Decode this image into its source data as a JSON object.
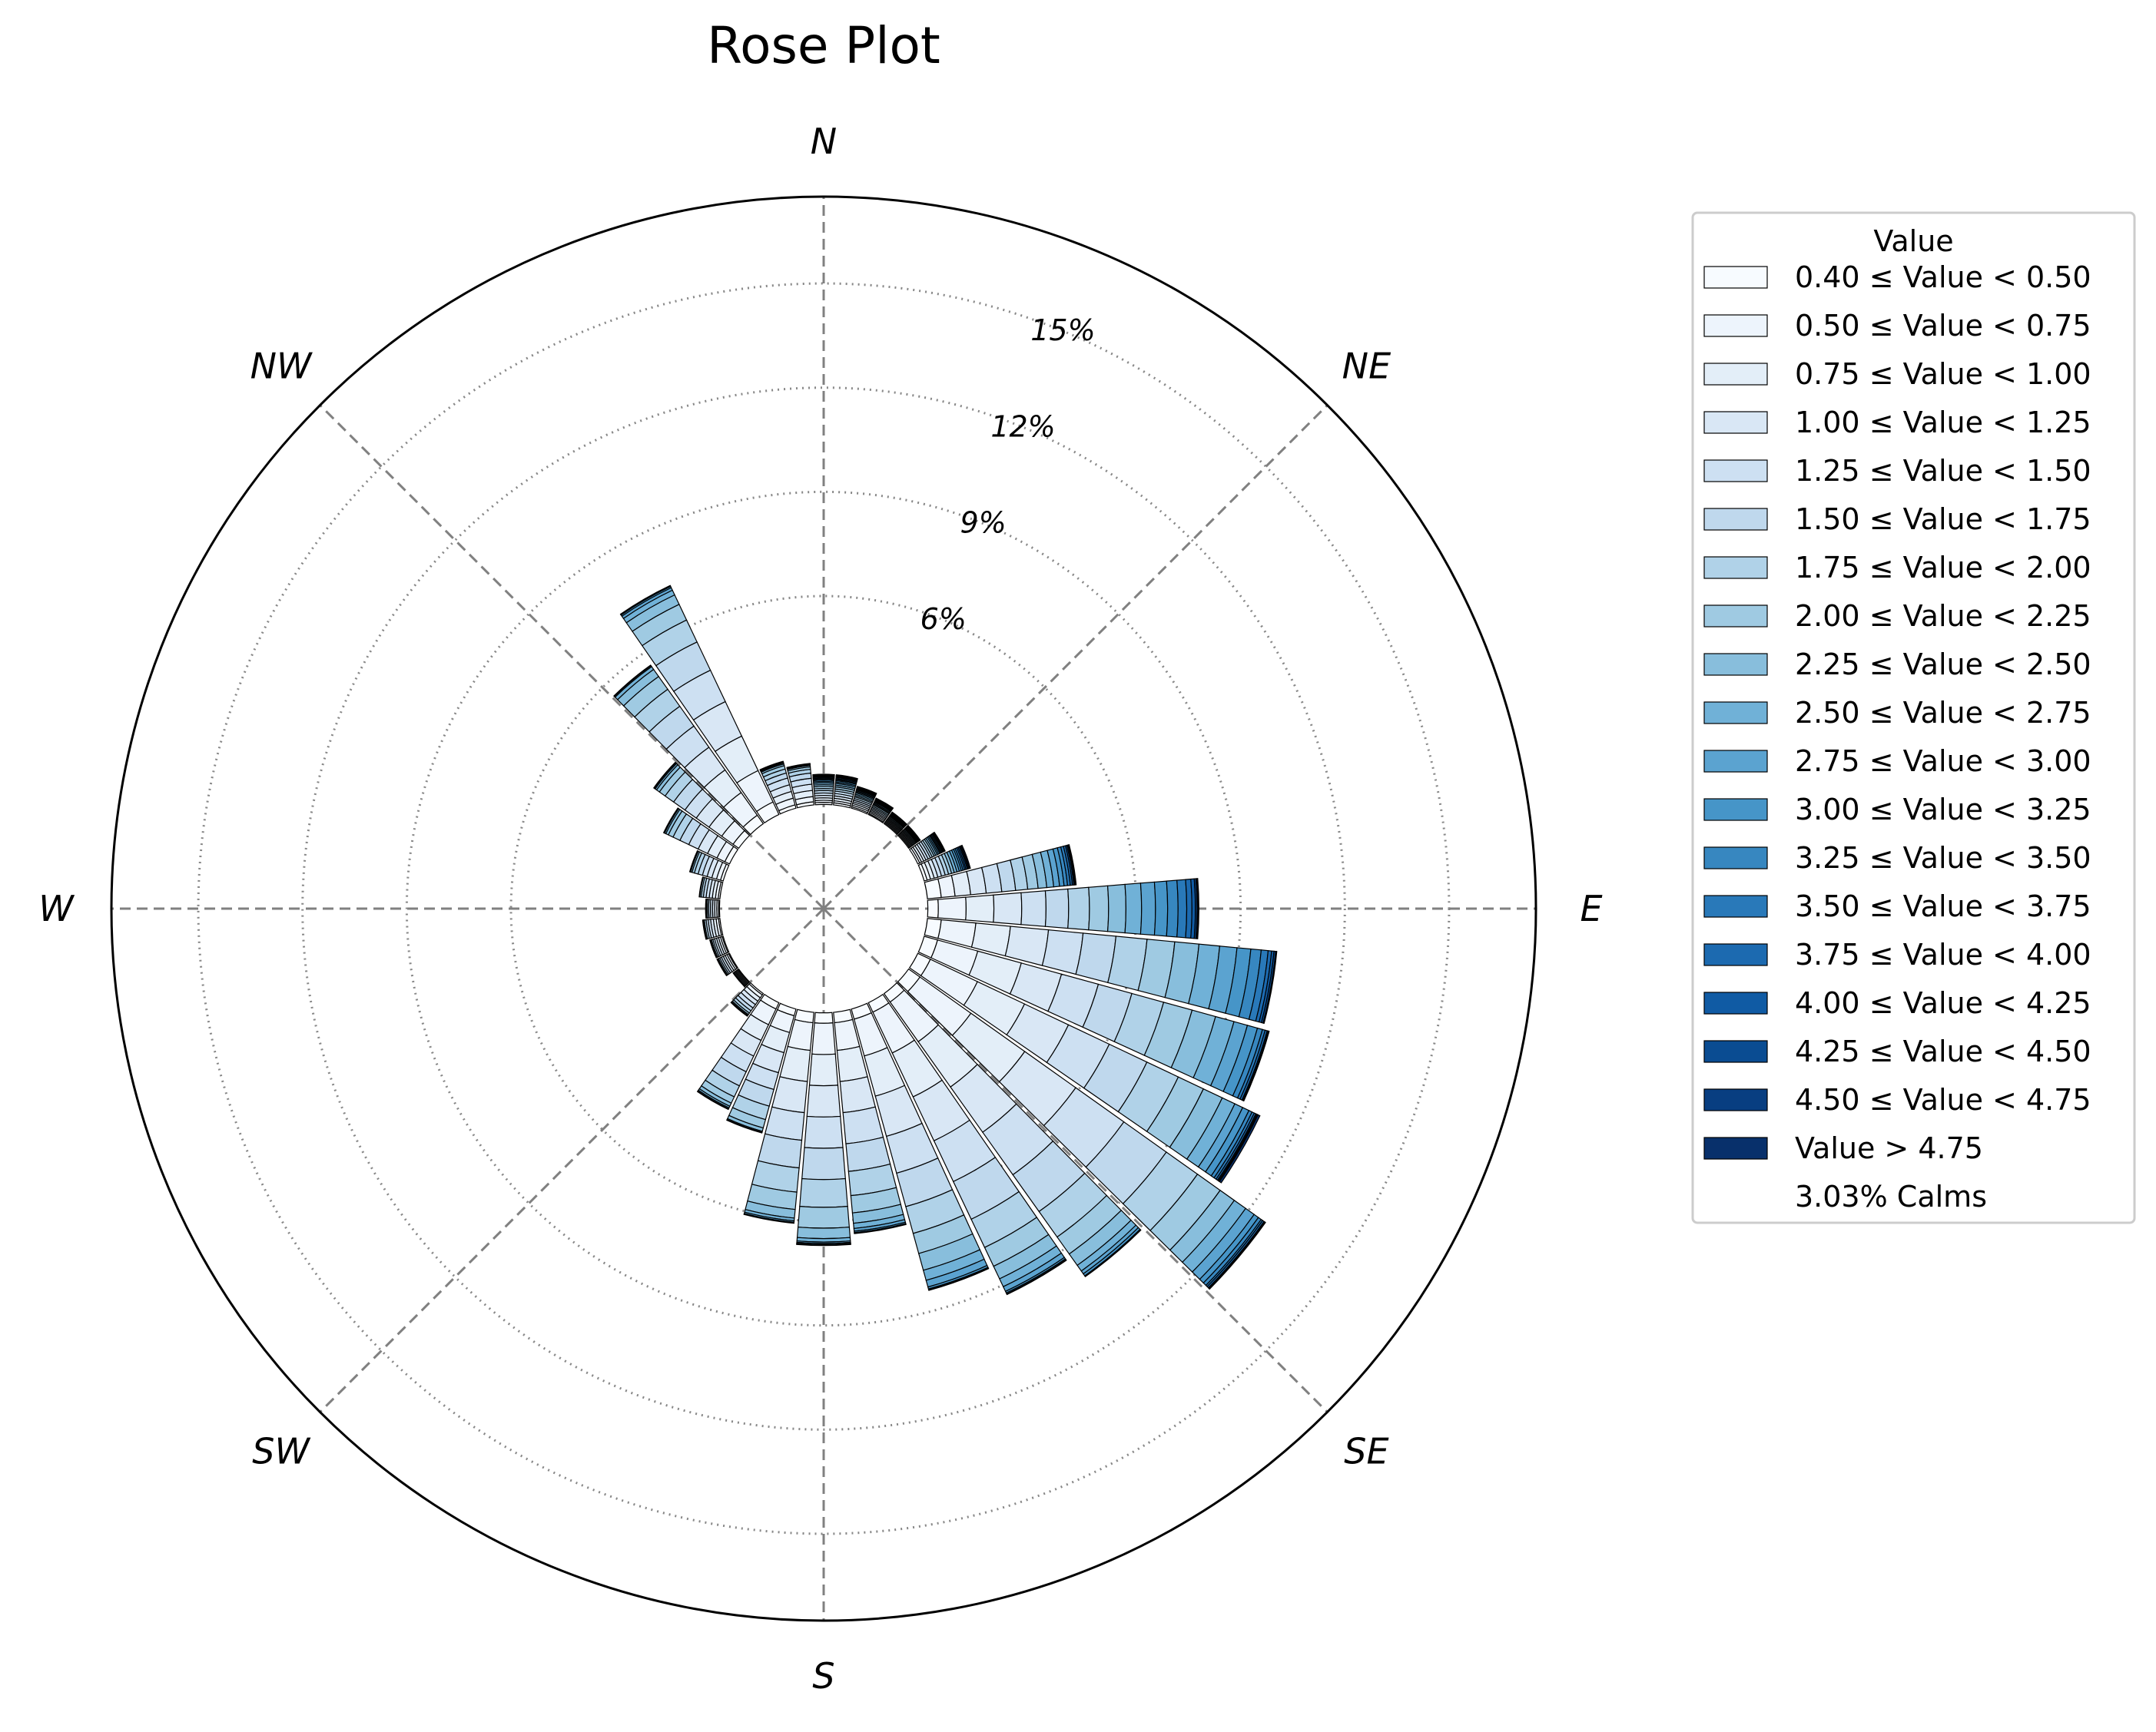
{
  "chart_data": {
    "type": "windrose",
    "title": "Rose Plot",
    "directions": [
      "N",
      "NE",
      "E",
      "SE",
      "S",
      "SW",
      "W",
      "NW"
    ],
    "sectors": 36,
    "sector_width_deg": 10,
    "sector_centers_deg": [
      0,
      10,
      20,
      30,
      40,
      50,
      60,
      70,
      80,
      90,
      100,
      110,
      120,
      130,
      140,
      150,
      160,
      170,
      180,
      190,
      200,
      210,
      220,
      230,
      240,
      250,
      260,
      270,
      280,
      290,
      300,
      310,
      320,
      330,
      340,
      350
    ],
    "radial_axis": {
      "unit": "%",
      "offset_pct": 3.0,
      "tick_values": [
        6,
        9,
        12,
        15
      ],
      "tick_labels": [
        "6%",
        "9%",
        "12%",
        "15%"
      ],
      "max_pct": 20.5,
      "label_angle_deg": 22.5
    },
    "grid": true,
    "legend": {
      "title": "Value",
      "placement": "right",
      "entries": [
        "0.40 ≤ Value < 0.50",
        "0.50 ≤ Value < 0.75",
        "0.75 ≤ Value < 1.00",
        "1.00 ≤ Value < 1.25",
        "1.25 ≤ Value < 1.50",
        "1.50 ≤ Value < 1.75",
        "1.75 ≤ Value < 2.00",
        "2.00 ≤ Value < 2.25",
        "2.25 ≤ Value < 2.50",
        "2.50 ≤ Value < 2.75",
        "2.75 ≤ Value < 3.00",
        "3.00 ≤ Value < 3.25",
        "3.25 ≤ Value < 3.50",
        "3.50 ≤ Value < 3.75",
        "3.75 ≤ Value < 4.00",
        "4.00 ≤ Value < 4.25",
        "4.25 ≤ Value < 4.50",
        "4.50 ≤ Value < 4.75",
        "Value > 4.75"
      ],
      "calms_label": "3.03% Calms"
    },
    "bin_colors": [
      "#f7fbff",
      "#edf4fc",
      "#e3eef8",
      "#d9e7f5",
      "#cde0f2",
      "#bfd8ed",
      "#b0d2e8",
      "#9fcae2",
      "#88bedc",
      "#70b1d7",
      "#5ba3d0",
      "#4695c8",
      "#3787c0",
      "#2979b9",
      "#1c6ab0",
      "#105ba4",
      "#0a4c92",
      "#083e81",
      "#08306b"
    ],
    "totals_pct": [
      0.8,
      0.8,
      0.6,
      0.5,
      0.4,
      0.4,
      0.8,
      1.3,
      4.3,
      7.8,
      10.1,
      10.3,
      11.0,
      12.6,
      10.0,
      9.3,
      8.4,
      6.4,
      6.7,
      6.1,
      3.7,
      3.4,
      0.8,
      0.2,
      0.4,
      0.4,
      0.5,
      0.4,
      0.6,
      1.0,
      2.1,
      3.0,
      5.6,
      7.3,
      1.4,
      1.2
    ],
    "bins_pct": [
      [
        0.06,
        0.06,
        0.07,
        0.07,
        0.07,
        0.07,
        0.06,
        0.06,
        0.05,
        0.05,
        0.04,
        0.04,
        0.03,
        0.03,
        0.03,
        0.02,
        0.02,
        0.02,
        0.02
      ],
      [
        0.06,
        0.06,
        0.07,
        0.07,
        0.07,
        0.07,
        0.06,
        0.06,
        0.05,
        0.05,
        0.04,
        0.04,
        0.03,
        0.03,
        0.03,
        0.02,
        0.02,
        0.02,
        0.02
      ],
      [
        0.04,
        0.05,
        0.05,
        0.05,
        0.05,
        0.05,
        0.05,
        0.04,
        0.04,
        0.04,
        0.03,
        0.03,
        0.03,
        0.02,
        0.02,
        0.02,
        0.02,
        0.01,
        0.01
      ],
      [
        0.03,
        0.04,
        0.04,
        0.04,
        0.04,
        0.04,
        0.04,
        0.04,
        0.03,
        0.03,
        0.03,
        0.02,
        0.02,
        0.02,
        0.02,
        0.01,
        0.01,
        0.01,
        0.01
      ],
      [
        0.03,
        0.03,
        0.03,
        0.03,
        0.03,
        0.03,
        0.03,
        0.03,
        0.03,
        0.02,
        0.02,
        0.02,
        0.02,
        0.01,
        0.01,
        0.01,
        0.01,
        0.01,
        0.01
      ],
      [
        0.03,
        0.03,
        0.03,
        0.03,
        0.03,
        0.03,
        0.03,
        0.03,
        0.03,
        0.02,
        0.02,
        0.02,
        0.02,
        0.01,
        0.01,
        0.01,
        0.01,
        0.01,
        0.01
      ],
      [
        0.06,
        0.06,
        0.07,
        0.07,
        0.07,
        0.07,
        0.06,
        0.06,
        0.05,
        0.05,
        0.04,
        0.04,
        0.03,
        0.03,
        0.03,
        0.02,
        0.02,
        0.02,
        0.02
      ],
      [
        0.09,
        0.1,
        0.11,
        0.11,
        0.11,
        0.11,
        0.1,
        0.09,
        0.08,
        0.08,
        0.07,
        0.06,
        0.05,
        0.05,
        0.04,
        0.04,
        0.03,
        0.03,
        0.03
      ],
      [
        0.4,
        0.4,
        0.45,
        0.45,
        0.45,
        0.4,
        0.35,
        0.3,
        0.25,
        0.2,
        0.17,
        0.13,
        0.1,
        0.08,
        0.06,
        0.04,
        0.03,
        0.02,
        0.02
      ],
      [
        0.3,
        0.8,
        0.8,
        0.8,
        0.7,
        0.65,
        0.6,
        0.55,
        0.5,
        0.45,
        0.4,
        0.35,
        0.3,
        0.25,
        0.15,
        0.1,
        0.05,
        0.03,
        0.02
      ],
      [
        0.4,
        1.0,
        1.0,
        1.1,
        1.0,
        0.95,
        0.9,
        0.8,
        0.7,
        0.6,
        0.5,
        0.4,
        0.3,
        0.2,
        0.1,
        0.07,
        0.05,
        0.02,
        0.01
      ],
      [
        0.4,
        1.2,
        1.3,
        1.2,
        1.1,
        1.0,
        0.95,
        0.85,
        0.7,
        0.55,
        0.4,
        0.3,
        0.15,
        0.08,
        0.06,
        0.03,
        0.02,
        0.01,
        0.0
      ],
      [
        0.4,
        1.5,
        1.5,
        1.4,
        1.3,
        1.2,
        1.0,
        0.8,
        0.6,
        0.4,
        0.25,
        0.2,
        0.1,
        0.07,
        0.05,
        0.03,
        0.02,
        0.02,
        0.06
      ],
      [
        0.4,
        1.8,
        1.9,
        1.8,
        1.7,
        1.5,
        1.1,
        0.8,
        0.5,
        0.4,
        0.3,
        0.15,
        0.1,
        0.05,
        0.05,
        0.02,
        0.01,
        0.01,
        0.01
      ],
      [
        0.3,
        1.4,
        1.6,
        1.6,
        1.5,
        1.3,
        0.9,
        0.6,
        0.4,
        0.2,
        0.1,
        0.07,
        0.02,
        0.01,
        0.0,
        0.0,
        0.0,
        0.0,
        0.0
      ],
      [
        0.3,
        1.3,
        1.4,
        1.4,
        1.3,
        1.2,
        0.9,
        0.6,
        0.4,
        0.25,
        0.15,
        0.05,
        0.03,
        0.02,
        0.0,
        0.0,
        0.0,
        0.0,
        0.0
      ],
      [
        0.3,
        1.1,
        1.2,
        1.2,
        1.1,
        1.0,
        0.8,
        0.6,
        0.5,
        0.3,
        0.2,
        0.06,
        0.02,
        0.01,
        0.01,
        0.0,
        0.0,
        0.0,
        0.0
      ],
      [
        0.3,
        0.8,
        0.9,
        0.9,
        0.9,
        0.8,
        0.7,
        0.5,
        0.3,
        0.15,
        0.08,
        0.04,
        0.02,
        0.01,
        0.0,
        0.0,
        0.0,
        0.0,
        0.0
      ],
      [
        0.3,
        0.9,
        0.9,
        0.9,
        0.9,
        0.9,
        0.8,
        0.6,
        0.3,
        0.1,
        0.04,
        0.03,
        0.02,
        0.01,
        0.0,
        0.0,
        0.0,
        0.0,
        0.0
      ],
      [
        0.3,
        0.8,
        0.9,
        0.9,
        0.8,
        0.8,
        0.7,
        0.5,
        0.25,
        0.08,
        0.04,
        0.02,
        0.01,
        0.0,
        0.0,
        0.0,
        0.0,
        0.0,
        0.0
      ],
      [
        0.2,
        0.5,
        0.6,
        0.6,
        0.5,
        0.5,
        0.4,
        0.25,
        0.1,
        0.03,
        0.01,
        0.01,
        0.0,
        0.0,
        0.0,
        0.0,
        0.0,
        0.0,
        0.0
      ],
      [
        0.2,
        0.5,
        0.5,
        0.5,
        0.5,
        0.45,
        0.35,
        0.2,
        0.1,
        0.05,
        0.03,
        0.02,
        0.0,
        0.0,
        0.0,
        0.0,
        0.0,
        0.0,
        0.0
      ],
      [
        0.05,
        0.1,
        0.12,
        0.12,
        0.12,
        0.1,
        0.08,
        0.05,
        0.03,
        0.02,
        0.01,
        0.0,
        0.0,
        0.0,
        0.0,
        0.0,
        0.0,
        0.0,
        0.0
      ],
      [
        0.02,
        0.03,
        0.03,
        0.03,
        0.03,
        0.03,
        0.02,
        0.01,
        0.0,
        0.0,
        0.0,
        0.0,
        0.0,
        0.0,
        0.0,
        0.0,
        0.0,
        0.0,
        0.0
      ],
      [
        0.03,
        0.05,
        0.06,
        0.06,
        0.06,
        0.05,
        0.04,
        0.03,
        0.02,
        0.0,
        0.0,
        0.0,
        0.0,
        0.0,
        0.0,
        0.0,
        0.0,
        0.0,
        0.0
      ],
      [
        0.03,
        0.05,
        0.06,
        0.06,
        0.06,
        0.05,
        0.04,
        0.03,
        0.02,
        0.0,
        0.0,
        0.0,
        0.0,
        0.0,
        0.0,
        0.0,
        0.0,
        0.0,
        0.0
      ],
      [
        0.04,
        0.07,
        0.08,
        0.08,
        0.07,
        0.06,
        0.05,
        0.03,
        0.02,
        0.0,
        0.0,
        0.0,
        0.0,
        0.0,
        0.0,
        0.0,
        0.0,
        0.0,
        0.0
      ],
      [
        0.03,
        0.05,
        0.06,
        0.06,
        0.06,
        0.05,
        0.04,
        0.03,
        0.02,
        0.0,
        0.0,
        0.0,
        0.0,
        0.0,
        0.0,
        0.0,
        0.0,
        0.0,
        0.0
      ],
      [
        0.05,
        0.08,
        0.09,
        0.09,
        0.09,
        0.08,
        0.06,
        0.04,
        0.02,
        0.0,
        0.0,
        0.0,
        0.0,
        0.0,
        0.0,
        0.0,
        0.0,
        0.0,
        0.0
      ],
      [
        0.08,
        0.12,
        0.14,
        0.14,
        0.14,
        0.13,
        0.11,
        0.07,
        0.04,
        0.02,
        0.01,
        0.0,
        0.0,
        0.0,
        0.0,
        0.0,
        0.0,
        0.0,
        0.0
      ],
      [
        0.15,
        0.25,
        0.3,
        0.3,
        0.3,
        0.28,
        0.22,
        0.15,
        0.08,
        0.04,
        0.02,
        0.01,
        0.0,
        0.0,
        0.0,
        0.0,
        0.0,
        0.0,
        0.0
      ],
      [
        0.2,
        0.4,
        0.45,
        0.45,
        0.4,
        0.4,
        0.3,
        0.2,
        0.1,
        0.05,
        0.03,
        0.02,
        0.0,
        0.0,
        0.0,
        0.0,
        0.0,
        0.0,
        0.0
      ],
      [
        0.3,
        0.8,
        0.8,
        0.8,
        0.75,
        0.7,
        0.6,
        0.45,
        0.25,
        0.1,
        0.03,
        0.02,
        0.0,
        0.0,
        0.0,
        0.0,
        0.0,
        0.0,
        0.0
      ],
      [
        0.4,
        1.0,
        1.1,
        1.1,
        1.0,
        0.9,
        0.7,
        0.5,
        0.3,
        0.15,
        0.08,
        0.04,
        0.02,
        0.01,
        0.0,
        0.0,
        0.0,
        0.0,
        0.0
      ],
      [
        0.1,
        0.2,
        0.2,
        0.2,
        0.2,
        0.15,
        0.12,
        0.1,
        0.05,
        0.03,
        0.02,
        0.01,
        0.01,
        0.01,
        0.0,
        0.0,
        0.0,
        0.0,
        0.0
      ],
      [
        0.09,
        0.15,
        0.18,
        0.18,
        0.17,
        0.15,
        0.11,
        0.07,
        0.04,
        0.02,
        0.01,
        0.01,
        0.01,
        0.01,
        0.0,
        0.0,
        0.0,
        0.0,
        0.0
      ]
    ]
  }
}
